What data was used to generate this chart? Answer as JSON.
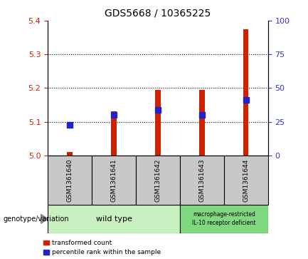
{
  "title": "GDS5668 / 10365225",
  "categories": [
    "GSM1361640",
    "GSM1361641",
    "GSM1361642",
    "GSM1361643",
    "GSM1361644"
  ],
  "red_values": [
    5.01,
    5.13,
    5.195,
    5.195,
    5.375
  ],
  "blue_values": [
    5.09,
    5.12,
    5.135,
    5.12,
    5.165
  ],
  "ylim_left": [
    5.0,
    5.4
  ],
  "ylim_right": [
    0,
    100
  ],
  "yticks_left": [
    5.0,
    5.1,
    5.2,
    5.3,
    5.4
  ],
  "yticks_right": [
    0,
    25,
    50,
    75,
    100
  ],
  "left_tick_color": "#cc2200",
  "right_tick_color": "#3333cc",
  "bar_color": "#cc2200",
  "dot_color": "#2222cc",
  "group1_label": "wild type",
  "group2_label": "macrophage-restricted\nIL-10 receptor deficient",
  "genotype_label": "genotype/variation",
  "legend_red": "transformed count",
  "legend_blue": "percentile rank within the sample",
  "bar_width": 0.12,
  "dot_size": 28,
  "bg_plot": "#ffffff",
  "bg_xtick": "#c8c8c8",
  "bg_group1": "#c8f0c0",
  "bg_group2": "#80d880",
  "gridline_color": "#000000",
  "spine_color": "#000000"
}
